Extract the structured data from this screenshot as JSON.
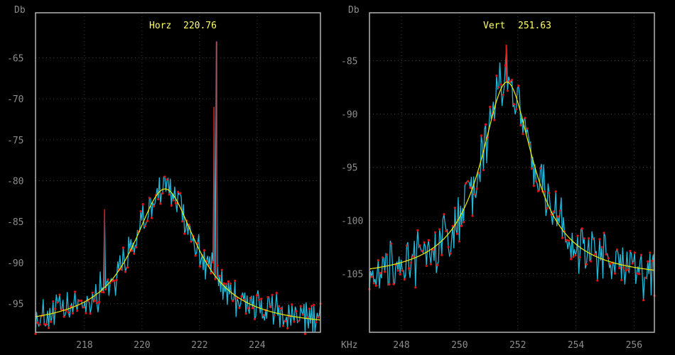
{
  "chart_data": [
    {
      "type": "line",
      "title_label": "Horz",
      "title_value": "220.76",
      "ylabel": "Db",
      "xlabel": "",
      "xlim": [
        216.3,
        226.2
      ],
      "ylim": [
        -98.5,
        -59.5
      ],
      "xticks": [
        218,
        220,
        222,
        224
      ],
      "yticks": [
        -65,
        -70,
        -75,
        -80,
        -85,
        -90,
        -95
      ],
      "grid": true,
      "peak": {
        "x": 220.8,
        "y": -81.0
      },
      "fit": {
        "peak_x": 220.8,
        "peak_y": -81.0,
        "base_y": -98.0,
        "half_width": 1.35
      },
      "noise_amplitude": 1.8,
      "spikes": [
        {
          "x": 218.7,
          "y": -83.5
        },
        {
          "x": 222.5,
          "y": -71.0
        },
        {
          "x": 222.6,
          "y": -63.0
        }
      ],
      "colors": {
        "trace": "#22b8d8",
        "points": "#e01414",
        "fit": "#f0f000"
      }
    },
    {
      "type": "line",
      "title_label": "Vert",
      "title_value": "251.63",
      "ylabel": "Db",
      "xlabel": "KHz",
      "xlim": [
        246.9,
        256.7
      ],
      "ylim": [
        -110.5,
        -80.5
      ],
      "xticks": [
        248,
        250,
        252,
        254,
        256
      ],
      "yticks": [
        -85,
        -90,
        -95,
        -100,
        -105
      ],
      "grid": true,
      "peak": {
        "x": 251.63,
        "y": -87.0
      },
      "fit": {
        "peak_x": 251.63,
        "peak_y": -87.0,
        "base_y": -105.5,
        "half_width": 1.1
      },
      "noise_amplitude": 2.0,
      "spikes": [
        {
          "x": 251.6,
          "y": -83.5
        }
      ],
      "colors": {
        "trace": "#22b8d8",
        "points": "#e01414",
        "fit": "#f0f000"
      }
    }
  ]
}
